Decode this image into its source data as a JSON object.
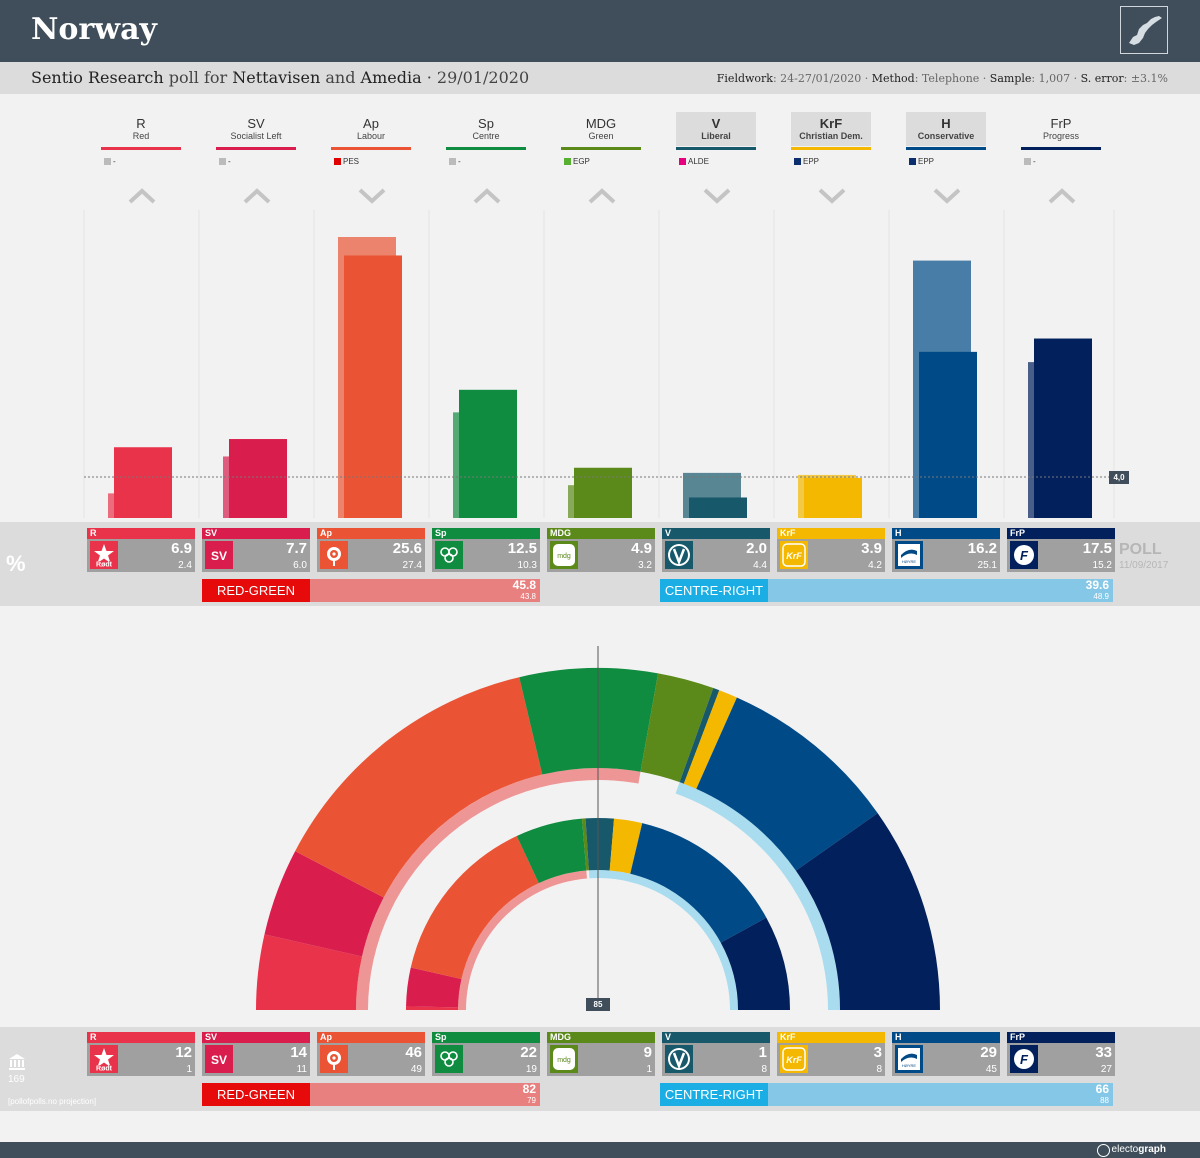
{
  "header": {
    "title": "Norway"
  },
  "subheader": {
    "pollster": "Sentio Research",
    "poll_for": "poll for",
    "client_1": "Nettavisen",
    "and_word": "and",
    "client_2": "Amedia",
    "date": "· 29/01/2020",
    "fieldwork_label": "Fieldwork",
    "fieldwork": ": 24-27/01/2020 ·",
    "method_label": "Method",
    "method": ": Telephone ·",
    "sample_label": "Sample",
    "sample": ": 1,007 ·",
    "error_label": "S. error",
    "error": ": ±3.1%"
  },
  "threshold_label": "4,0",
  "percent_sign": "%",
  "poll_label": "POLL",
  "previous_date": "11/09/2017",
  "red_green_label": "RED-GREEN",
  "centre_right_label": "CENTRE-RIGHT",
  "pct_coalitions": {
    "red_green": "45.8",
    "red_green_prev": "43.8",
    "centre_right": "39.6",
    "centre_right_prev": "48.9"
  },
  "seat_coalitions": {
    "red_green": "82",
    "red_green_prev": "79",
    "centre_right": "66",
    "centre_right_prev": "88"
  },
  "majority_label": "85",
  "seats_total": "169",
  "projection_note": "[pollofpolls.no projection]",
  "brand": {
    "prefix": "electo",
    "bold": "graph"
  },
  "parties": [
    {
      "abbr": "R",
      "name": "Red",
      "group": "-",
      "group_color": "#bbbbbb",
      "color": "#e8334a",
      "trend": "up",
      "boxed": false,
      "logo": "star-icon"
    },
    {
      "abbr": "SV",
      "name": "Socialist Left",
      "group": "-",
      "group_color": "#bbbbbb",
      "color": "#d91d4d",
      "trend": "up",
      "boxed": false,
      "logo": "sv-logo-icon"
    },
    {
      "abbr": "Ap",
      "name": "Labour",
      "group": "PES",
      "group_color": "#e00000",
      "color": "#ea5435",
      "trend": "down",
      "boxed": false,
      "logo": "rose-icon"
    },
    {
      "abbr": "Sp",
      "name": "Centre",
      "group": "-",
      "group_color": "#bbbbbb",
      "color": "#0f8c3f",
      "trend": "up",
      "boxed": false,
      "logo": "clover-icon"
    },
    {
      "abbr": "MDG",
      "name": "Green",
      "group": "EGP",
      "group_color": "#57b030",
      "color": "#5b8a1a",
      "trend": "up",
      "boxed": false,
      "logo": "mdg-icon"
    },
    {
      "abbr": "V",
      "name": "Liberal",
      "group": "ALDE",
      "group_color": "#e6007e",
      "color": "#17596b",
      "trend": "down",
      "boxed": true,
      "logo": "v-logo-icon"
    },
    {
      "abbr": "KrF",
      "name": "Christian Dem.",
      "group": "EPP",
      "group_color": "#0a2e6e",
      "color": "#f4b800",
      "trend": "down",
      "boxed": true,
      "logo": "krf-logo-icon"
    },
    {
      "abbr": "H",
      "name": "Conservative",
      "group": "EPP",
      "group_color": "#0a2e6e",
      "color": "#004b87",
      "trend": "down",
      "boxed": true,
      "logo": "hoyre-logo-icon"
    },
    {
      "abbr": "FrP",
      "name": "Progress",
      "group": "-",
      "group_color": "#bbbbbb",
      "color": "#02215c",
      "trend": "up",
      "boxed": false,
      "logo": "frp-logo-icon"
    }
  ],
  "chart_data": [
    {
      "type": "bar",
      "title": "Vote share (%)",
      "categories": [
        "R",
        "SV",
        "Ap",
        "Sp",
        "MDG",
        "V",
        "KrF",
        "H",
        "FrP"
      ],
      "series": [
        {
          "name": "Poll 29/01/2020",
          "values": [
            6.9,
            7.7,
            25.6,
            12.5,
            4.9,
            2.0,
            3.9,
            16.2,
            17.5
          ]
        },
        {
          "name": "Election 11/09/2017",
          "values": [
            2.4,
            6.0,
            27.4,
            10.3,
            3.2,
            4.4,
            4.2,
            25.1,
            15.2
          ]
        }
      ],
      "threshold": 4.0,
      "ylim": [
        0,
        27.4
      ]
    },
    {
      "type": "pie",
      "title": "Seat projection (parliament arcs, 169 seats)",
      "categories": [
        "R",
        "SV",
        "Ap",
        "Sp",
        "MDG",
        "V",
        "KrF",
        "H",
        "FrP"
      ],
      "series": [
        {
          "name": "Poll seats",
          "values": [
            12,
            14,
            46,
            22,
            9,
            1,
            3,
            29,
            33
          ]
        },
        {
          "name": "2017 seats",
          "values": [
            1,
            11,
            49,
            19,
            1,
            8,
            8,
            45,
            27
          ]
        }
      ],
      "total": 169,
      "majority": 85
    }
  ]
}
